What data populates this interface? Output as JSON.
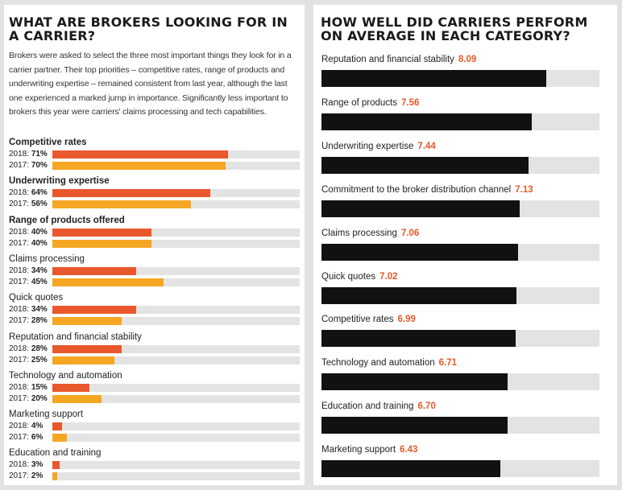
{
  "left": {
    "title": "WHAT ARE BROKERS LOOKING FOR IN A CARRIER?",
    "intro": "Brokers were asked to select the three most important things they look for in a carrier partner. Their top priorities – competitive rates, range of products and underwriting expertise – remained consistent from last year, although the last one experienced a marked jump in importance. Significantly less important to brokers this year were carriers' claims processing and tech capabilities."
  },
  "right": {
    "title": "HOW WELL DID CARRIERS PERFORM ON AVERAGE IN EACH CATEGORY?"
  },
  "colors": {
    "y2018": "#e8582c",
    "y2017": "#f5a623",
    "score_bar": "#111111",
    "track": "#e3e3e3",
    "score_text": "#e8582c"
  },
  "chart_data": [
    {
      "type": "bar",
      "orientation": "horizontal",
      "title": "WHAT ARE BROKERS LOOKING FOR IN A CARRIER?",
      "xlim": [
        0,
        100
      ],
      "categories": [
        {
          "label": "Competitive rates",
          "bold": true,
          "rows": [
            {
              "year": "2018:",
              "value": 71,
              "display": "71%"
            },
            {
              "year": "2017:",
              "value": 70,
              "display": "70%"
            }
          ]
        },
        {
          "label": "Underwriting expertise",
          "bold": true,
          "rows": [
            {
              "year": "2018:",
              "value": 64,
              "display": "64%"
            },
            {
              "year": "2017:",
              "value": 56,
              "display": "56%"
            }
          ]
        },
        {
          "label": "Range of products offered",
          "bold": true,
          "rows": [
            {
              "year": "2018:",
              "value": 40,
              "display": "40%"
            },
            {
              "year": "2017:",
              "value": 40,
              "display": "40%"
            }
          ]
        },
        {
          "label": "Claims processing",
          "bold": false,
          "rows": [
            {
              "year": "2018:",
              "value": 34,
              "display": "34%"
            },
            {
              "year": "2017:",
              "value": 45,
              "display": "45%"
            }
          ]
        },
        {
          "label": "Quick quotes",
          "bold": false,
          "rows": [
            {
              "year": "2018:",
              "value": 34,
              "display": "34%"
            },
            {
              "year": "2017:",
              "value": 28,
              "display": "28%"
            }
          ]
        },
        {
          "label": "Reputation and financial stability",
          "bold": false,
          "rows": [
            {
              "year": "2018:",
              "value": 28,
              "display": "28%"
            },
            {
              "year": "2017:",
              "value": 25,
              "display": "25%"
            }
          ]
        },
        {
          "label": "Technology and automation",
          "bold": false,
          "rows": [
            {
              "year": "2018:",
              "value": 15,
              "display": "15%"
            },
            {
              "year": "2017:",
              "value": 20,
              "display": "20%"
            }
          ]
        },
        {
          "label": "Marketing support",
          "bold": false,
          "rows": [
            {
              "year": "2018:",
              "value": 4,
              "display": "4%"
            },
            {
              "year": "2017:",
              "value": 6,
              "display": "6%"
            }
          ]
        },
        {
          "label": "Education and training",
          "bold": false,
          "rows": [
            {
              "year": "2018:",
              "value": 3,
              "display": "3%"
            },
            {
              "year": "2017:",
              "value": 2,
              "display": "2%"
            }
          ]
        }
      ]
    },
    {
      "type": "bar",
      "orientation": "horizontal",
      "title": "HOW WELL DID CARRIERS PERFORM ON AVERAGE IN EACH CATEGORY?",
      "xlim": [
        0,
        10
      ],
      "categories": [
        {
          "label": "Reputation and financial stability",
          "value": 8.09,
          "display": "8.09"
        },
        {
          "label": "Range of products",
          "value": 7.56,
          "display": "7.56"
        },
        {
          "label": "Underwriting expertise",
          "value": 7.44,
          "display": "7.44"
        },
        {
          "label": "Commitment to the broker distribution channel",
          "value": 7.13,
          "display": "7.13"
        },
        {
          "label": "Claims processing",
          "value": 7.06,
          "display": "7.06"
        },
        {
          "label": "Quick quotes",
          "value": 7.02,
          "display": "7.02"
        },
        {
          "label": "Competitive rates",
          "value": 6.99,
          "display": "6.99"
        },
        {
          "label": "Technology and automation",
          "value": 6.71,
          "display": "6.71"
        },
        {
          "label": "Education and training",
          "value": 6.7,
          "display": "6.70"
        },
        {
          "label": "Marketing support",
          "value": 6.43,
          "display": "6.43"
        }
      ]
    }
  ]
}
